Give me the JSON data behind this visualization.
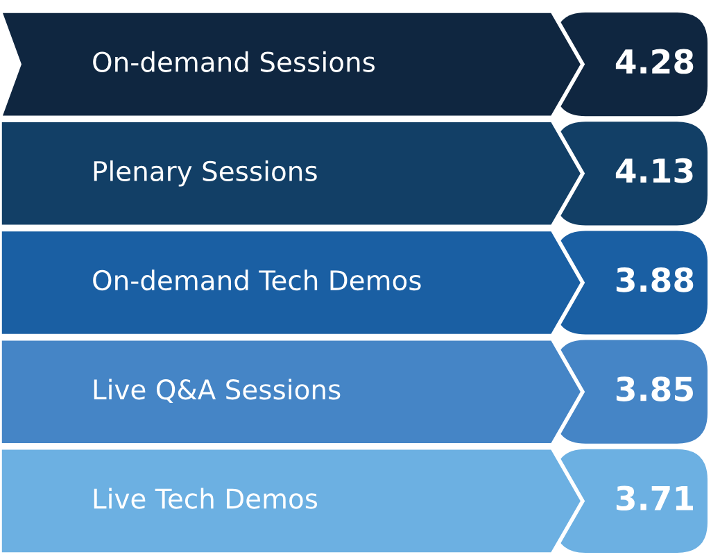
{
  "chart_data": {
    "type": "other",
    "categories": [
      "On-demand Sessions",
      "Plenary Sessions",
      "On-demand Tech Demos",
      "Live Q&A Sessions",
      "Live Tech Demos"
    ],
    "values": [
      4.28,
      4.13,
      3.88,
      3.85,
      3.71
    ],
    "colors": [
      "#0f2640",
      "#123f66",
      "#1a5fa3",
      "#4585c6",
      "#6cb0e2"
    ],
    "data_labels": true
  }
}
